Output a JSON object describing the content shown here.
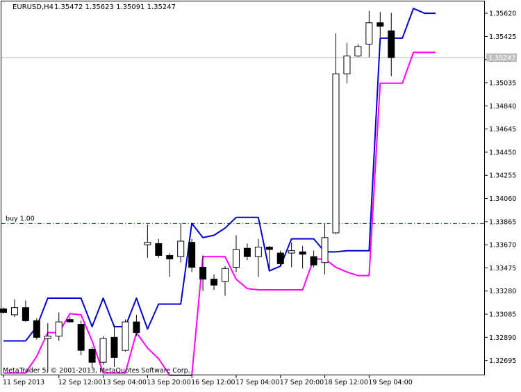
{
  "header": {
    "symbol": "EURUSD,H4",
    "ohlc": "1.35472 1.35623 1.35091 1.35247"
  },
  "footer": {
    "copyright": "MetaTrader 5, © 2001-2013, MetaQuotes Software Corp."
  },
  "colors": {
    "background": "#ffffff",
    "frame": "#000000",
    "upper_line": "#0000cd",
    "lower_line": "#ff00ff",
    "bull_body": "#ffffff",
    "bear_body": "#000000",
    "order_line": "#006400",
    "price_line": "#c0c0c0",
    "price_badge": "#c0c0c0"
  },
  "chart_data": {
    "type": "candlestick",
    "symbol": "EURUSD",
    "timeframe": "H4",
    "ylim": [
      1.3257,
      1.3572
    ],
    "y_ticks": [
      "1.35620",
      "1.35425",
      "1.35230",
      "1.35035",
      "1.34840",
      "1.34645",
      "1.34450",
      "1.34255",
      "1.34060",
      "1.33865",
      "1.33670",
      "1.33475",
      "1.33280",
      "1.33085",
      "1.32890",
      "1.32695"
    ],
    "current_price": "1.35247",
    "x_labels": [
      {
        "label": "11 Sep 2013",
        "bar": 0
      },
      {
        "label": "12 Sep 12:00",
        "bar": 5
      },
      {
        "label": "13 Sep 04:00",
        "bar": 9
      },
      {
        "label": "13 Sep 20:00",
        "bar": 13
      },
      {
        "label": "16 Sep 12:00",
        "bar": 17
      },
      {
        "label": "17 Sep 04:00",
        "bar": 21
      },
      {
        "label": "17 Sep 20:00",
        "bar": 25
      },
      {
        "label": "18 Sep 12:00",
        "bar": 29
      },
      {
        "label": "19 Sep 04:00",
        "bar": 33
      }
    ],
    "order_line": {
      "label": "buy 1.00",
      "price": 1.3385
    },
    "candles": [
      {
        "o": 1.3313,
        "h": 1.3314,
        "l": 1.3309,
        "c": 1.331
      },
      {
        "o": 1.3308,
        "h": 1.3321,
        "l": 1.3306,
        "c": 1.3314
      },
      {
        "o": 1.3314,
        "h": 1.332,
        "l": 1.3302,
        "c": 1.3303
      },
      {
        "o": 1.3303,
        "h": 1.3305,
        "l": 1.3287,
        "c": 1.3289
      },
      {
        "o": 1.3288,
        "h": 1.3301,
        "l": 1.326,
        "c": 1.329
      },
      {
        "o": 1.329,
        "h": 1.331,
        "l": 1.3286,
        "c": 1.3302
      },
      {
        "o": 1.3304,
        "h": 1.3306,
        "l": 1.3302,
        "c": 1.3302
      },
      {
        "o": 1.33,
        "h": 1.3303,
        "l": 1.3274,
        "c": 1.3278
      },
      {
        "o": 1.3279,
        "h": 1.3281,
        "l": 1.3263,
        "c": 1.3268
      },
      {
        "o": 1.3268,
        "h": 1.329,
        "l": 1.3266,
        "c": 1.3288
      },
      {
        "o": 1.3289,
        "h": 1.3299,
        "l": 1.3264,
        "c": 1.3272
      },
      {
        "o": 1.3278,
        "h": 1.3304,
        "l": 1.3277,
        "c": 1.3302
      },
      {
        "o": 1.3302,
        "h": 1.3308,
        "l": 1.329,
        "c": 1.3293
      },
      {
        "o": 1.3367,
        "h": 1.3384,
        "l": 1.3356,
        "c": 1.3369
      },
      {
        "o": 1.3368,
        "h": 1.3372,
        "l": 1.3356,
        "c": 1.3358
      },
      {
        "o": 1.3358,
        "h": 1.336,
        "l": 1.334,
        "c": 1.3355
      },
      {
        "o": 1.3357,
        "h": 1.3385,
        "l": 1.3352,
        "c": 1.337
      },
      {
        "o": 1.3369,
        "h": 1.3372,
        "l": 1.3344,
        "c": 1.3348
      },
      {
        "o": 1.3348,
        "h": 1.3358,
        "l": 1.3328,
        "c": 1.3338
      },
      {
        "o": 1.3338,
        "h": 1.3342,
        "l": 1.3329,
        "c": 1.3333
      },
      {
        "o": 1.3336,
        "h": 1.3349,
        "l": 1.3324,
        "c": 1.3347
      },
      {
        "o": 1.3348,
        "h": 1.3375,
        "l": 1.3344,
        "c": 1.3363
      },
      {
        "o": 1.3364,
        "h": 1.3368,
        "l": 1.3354,
        "c": 1.3357
      },
      {
        "o": 1.3357,
        "h": 1.3372,
        "l": 1.334,
        "c": 1.3365
      },
      {
        "o": 1.3365,
        "h": 1.3366,
        "l": 1.3345,
        "c": 1.3363
      },
      {
        "o": 1.336,
        "h": 1.3362,
        "l": 1.3349,
        "c": 1.3351
      },
      {
        "o": 1.336,
        "h": 1.3369,
        "l": 1.3348,
        "c": 1.3362
      },
      {
        "o": 1.3361,
        "h": 1.3366,
        "l": 1.3347,
        "c": 1.3359
      },
      {
        "o": 1.3357,
        "h": 1.3362,
        "l": 1.3348,
        "c": 1.335
      },
      {
        "o": 1.3352,
        "h": 1.3385,
        "l": 1.3342,
        "c": 1.3373
      },
      {
        "o": 1.3377,
        "h": 1.3545,
        "l": 1.3376,
        "c": 1.3511
      },
      {
        "o": 1.3511,
        "h": 1.3537,
        "l": 1.3503,
        "c": 1.3526
      },
      {
        "o": 1.3526,
        "h": 1.3536,
        "l": 1.3525,
        "c": 1.3534
      },
      {
        "o": 1.3536,
        "h": 1.3564,
        "l": 1.3525,
        "c": 1.3554
      },
      {
        "o": 1.3554,
        "h": 1.3563,
        "l": 1.3542,
        "c": 1.3551
      },
      {
        "o": 1.35472,
        "h": 1.35623,
        "l": 1.35091,
        "c": 1.35247
      }
    ],
    "series": [
      {
        "values": [
          1.3286,
          1.3286,
          1.3286,
          1.3298,
          1.3322,
          1.3322,
          1.3322,
          1.3322,
          1.3298,
          1.3322,
          1.3298,
          1.3298,
          1.3322,
          1.3296,
          1.3317,
          1.3317,
          1.3317,
          1.3385,
          1.3373,
          1.3375,
          1.3381,
          1.339,
          1.339,
          1.339,
          1.3345,
          1.3349,
          1.3372,
          1.3372,
          1.3372,
          1.3361,
          1.3361,
          1.3362,
          1.3362,
          1.3362,
          1.3541,
          1.3541,
          1.3541,
          1.3566,
          1.3562,
          1.3562
        ]
      },
      {
        "values": [
          1.3259,
          1.3259,
          1.3259,
          1.3273,
          1.3293,
          1.3293,
          1.3309,
          1.3308,
          1.3286,
          1.3259,
          1.3259,
          1.3259,
          1.3293,
          1.328,
          1.3271,
          1.3257,
          1.3257,
          1.3257,
          1.3357,
          1.3357,
          1.3357,
          1.3338,
          1.333,
          1.3329,
          1.3329,
          1.3329,
          1.3329,
          1.3329,
          1.3355,
          1.3355,
          1.3348,
          1.3344,
          1.3341,
          1.3341,
          1.3503,
          1.3503,
          1.3503,
          1.3529,
          1.3529,
          1.3529
        ]
      }
    ]
  }
}
